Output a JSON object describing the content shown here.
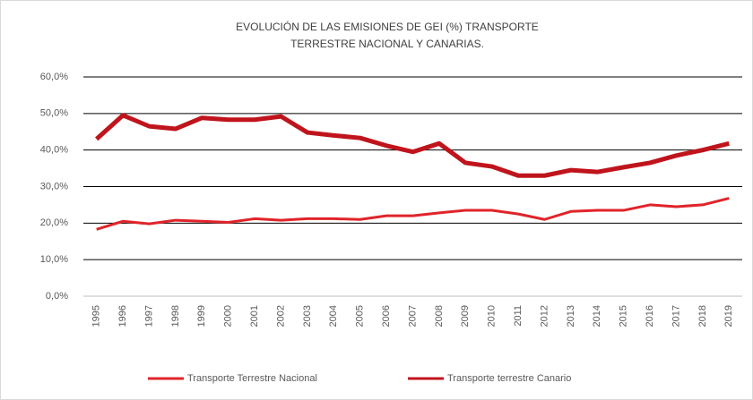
{
  "chart_data": {
    "type": "line",
    "title": [
      "EVOLUCIÓN DE LAS EMISIONES DE GEI (%) TRANSPORTE",
      "TERRESTRE NACIONAL Y CANARIAS."
    ],
    "categories": [
      "1995",
      "1996",
      "1997",
      "1998",
      "1999",
      "2000",
      "2001",
      "2002",
      "2003",
      "2004",
      "2005",
      "2006",
      "2007",
      "2008",
      "2009",
      "2010",
      "2011",
      "2012",
      "2013",
      "2014",
      "2015",
      "2016",
      "2017",
      "2018",
      "2019"
    ],
    "series": [
      {
        "name": "Transporte Terrestre Nacional",
        "color": "#e0242a",
        "values": [
          18.3,
          20.5,
          19.8,
          20.8,
          20.5,
          20.2,
          21.2,
          20.8,
          21.2,
          21.2,
          21,
          22,
          22,
          22.8,
          23.5,
          23.5,
          22.5,
          21,
          23.2,
          23.5,
          23.5,
          25,
          24.5,
          25,
          26.8
        ]
      },
      {
        "name": "Transporte terrestre Canario",
        "color": "#c0141c",
        "values": [
          43,
          49.5,
          46.5,
          45.8,
          48.8,
          48.3,
          48.3,
          49.2,
          44.8,
          44,
          43.3,
          41.2,
          39.5,
          41.8,
          36.5,
          35.5,
          33,
          33,
          34.5,
          34,
          35.3,
          36.5,
          38.5,
          40,
          41.8
        ]
      }
    ],
    "ylim": [
      0,
      60
    ],
    "yticks": [
      {
        "value": 0,
        "label": "0,0%"
      },
      {
        "value": 10,
        "label": "10,0%"
      },
      {
        "value": 20,
        "label": "20,0%"
      },
      {
        "value": 30,
        "label": "30,0%"
      },
      {
        "value": 40,
        "label": "40,0%"
      },
      {
        "value": 50,
        "label": "50,0%"
      },
      {
        "value": 60,
        "label": "60,0%"
      }
    ],
    "grid": true,
    "legend": "bottom"
  }
}
